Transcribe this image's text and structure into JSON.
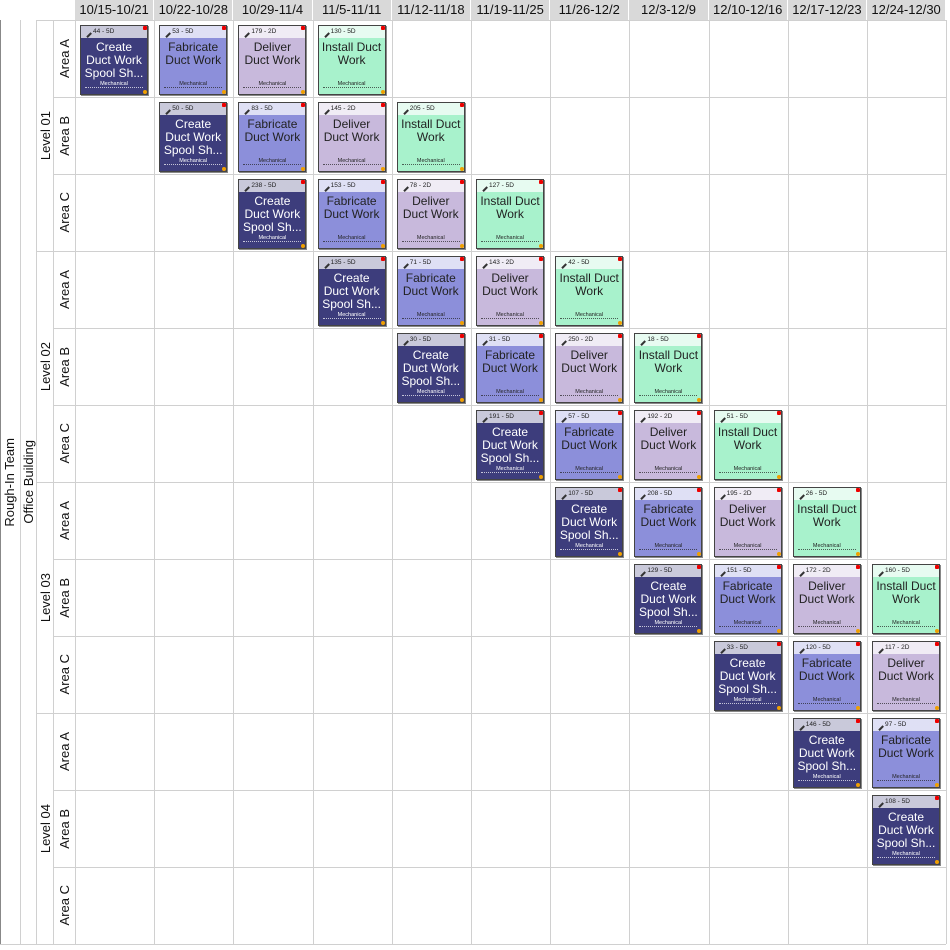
{
  "header": {
    "columns": [
      "10/15-10/21",
      "10/22-10/28",
      "10/29-11/4",
      "11/5-11/11",
      "11/12-11/18",
      "11/19-11/25",
      "11/26-12/2",
      "12/3-12/9",
      "12/10-12/16",
      "12/17-12/23",
      "12/24-12/30"
    ]
  },
  "team": {
    "label": "Rough-In Team",
    "project": "Office Building"
  },
  "levels": [
    {
      "label": "Level 01",
      "areas": [
        {
          "label": "Area A",
          "cells": [
            {
              "tag": "44 - 5D",
              "title": "Create Duct Work Spool Sh...",
              "trade": "Mechanical",
              "color": "#3d3d7c"
            },
            {
              "tag": "53 - 5D",
              "title": "Fabricate Duct Work",
              "trade": "Mechanical",
              "color": "#8c8fda"
            },
            {
              "tag": "179 - 2D",
              "title": "Deliver Duct Work",
              "trade": "Mechanical",
              "color": "#c8b9dc"
            },
            {
              "tag": "130 - 5D",
              "title": "Install Duct Work",
              "trade": "Mechanical",
              "color": "#a8f2cc"
            },
            null,
            null,
            null,
            null,
            null,
            null,
            null
          ]
        },
        {
          "label": "Area B",
          "cells": [
            null,
            {
              "tag": "50 - 5D",
              "title": "Create Duct Work Spool Sh...",
              "trade": "Mechanical",
              "color": "#3d3d7c"
            },
            {
              "tag": "83 - 5D",
              "title": "Fabricate Duct Work",
              "trade": "Mechanical",
              "color": "#8c8fda"
            },
            {
              "tag": "145 - 2D",
              "title": "Deliver Duct Work",
              "trade": "Mechanical",
              "color": "#c8b9dc"
            },
            {
              "tag": "205 - 5D",
              "title": "Install Duct Work",
              "trade": "Mechanical",
              "color": "#a8f2cc"
            },
            null,
            null,
            null,
            null,
            null,
            null
          ]
        },
        {
          "label": "Area C",
          "cells": [
            null,
            null,
            {
              "tag": "238 - 5D",
              "title": "Create Duct Work Spool Sh...",
              "trade": "Mechanical",
              "color": "#3d3d7c"
            },
            {
              "tag": "153 - 5D",
              "title": "Fabricate Duct Work",
              "trade": "Mechanical",
              "color": "#8c8fda"
            },
            {
              "tag": "78 - 2D",
              "title": "Deliver Duct Work",
              "trade": "Mechanical",
              "color": "#c8b9dc"
            },
            {
              "tag": "127 - 5D",
              "title": "Install Duct Work",
              "trade": "Mechanical",
              "color": "#a8f2cc"
            },
            null,
            null,
            null,
            null,
            null
          ]
        }
      ]
    },
    {
      "label": "Level 02",
      "areas": [
        {
          "label": "Area A",
          "cells": [
            null,
            null,
            null,
            {
              "tag": "135 - 5D",
              "title": "Create Duct Work Spool Sh...",
              "trade": "Mechanical",
              "color": "#3d3d7c"
            },
            {
              "tag": "71 - 5D",
              "title": "Fabricate Duct Work",
              "trade": "Mechanical",
              "color": "#8c8fda"
            },
            {
              "tag": "143 - 2D",
              "title": "Deliver Duct Work",
              "trade": "Mechanical",
              "color": "#c8b9dc"
            },
            {
              "tag": "42 - 5D",
              "title": "Install Duct Work",
              "trade": "Mechanical",
              "color": "#a8f2cc"
            },
            null,
            null,
            null,
            null
          ]
        },
        {
          "label": "Area B",
          "cells": [
            null,
            null,
            null,
            null,
            {
              "tag": "30 - 5D",
              "title": "Create Duct Work Spool Sh...",
              "trade": "Mechanical",
              "color": "#3d3d7c"
            },
            {
              "tag": "31 - 5D",
              "title": "Fabricate Duct Work",
              "trade": "Mechanical",
              "color": "#8c8fda"
            },
            {
              "tag": "250 - 2D",
              "title": "Deliver Duct Work",
              "trade": "Mechanical",
              "color": "#c8b9dc"
            },
            {
              "tag": "18 - 5D",
              "title": "Install Duct Work",
              "trade": "Mechanical",
              "color": "#a8f2cc"
            },
            null,
            null,
            null
          ]
        },
        {
          "label": "Area C",
          "cells": [
            null,
            null,
            null,
            null,
            null,
            {
              "tag": "191 - 5D",
              "title": "Create Duct Work Spool Sh...",
              "trade": "Mechanical",
              "color": "#3d3d7c"
            },
            {
              "tag": "57 - 5D",
              "title": "Fabricate Duct Work",
              "trade": "Mechanical",
              "color": "#8c8fda"
            },
            {
              "tag": "192 - 2D",
              "title": "Deliver Duct Work",
              "trade": "Mechanical",
              "color": "#c8b9dc"
            },
            {
              "tag": "51 - 5D",
              "title": "Install Duct Work",
              "trade": "Mechanical",
              "color": "#a8f2cc"
            },
            null,
            null
          ]
        }
      ]
    },
    {
      "label": "Level 03",
      "areas": [
        {
          "label": "Area A",
          "cells": [
            null,
            null,
            null,
            null,
            null,
            null,
            {
              "tag": "107 - 5D",
              "title": "Create Duct Work Spool Sh...",
              "trade": "Mechanical",
              "color": "#3d3d7c"
            },
            {
              "tag": "208 - 5D",
              "title": "Fabricate Duct Work",
              "trade": "Mechanical",
              "color": "#8c8fda"
            },
            {
              "tag": "195 - 2D",
              "title": "Deliver Duct Work",
              "trade": "Mechanical",
              "color": "#c8b9dc"
            },
            {
              "tag": "26 - 5D",
              "title": "Install Duct Work",
              "trade": "Mechanical",
              "color": "#a8f2cc"
            },
            null
          ]
        },
        {
          "label": "Area B",
          "cells": [
            null,
            null,
            null,
            null,
            null,
            null,
            null,
            {
              "tag": "129 - 5D",
              "title": "Create Duct Work Spool Sh...",
              "trade": "Mechanical",
              "color": "#3d3d7c"
            },
            {
              "tag": "151 - 5D",
              "title": "Fabricate Duct Work",
              "trade": "Mechanical",
              "color": "#8c8fda"
            },
            {
              "tag": "172 - 2D",
              "title": "Deliver Duct Work",
              "trade": "Mechanical",
              "color": "#c8b9dc"
            },
            {
              "tag": "160 - 5D",
              "title": "Install Duct Work",
              "trade": "Mechanical",
              "color": "#a8f2cc"
            }
          ]
        },
        {
          "label": "Area C",
          "cells": [
            null,
            null,
            null,
            null,
            null,
            null,
            null,
            null,
            {
              "tag": "33 - 5D",
              "title": "Create Duct Work Spool Sh...",
              "trade": "Mechanical",
              "color": "#3d3d7c"
            },
            {
              "tag": "120 - 5D",
              "title": "Fabricate Duct Work",
              "trade": "Mechanical",
              "color": "#8c8fda"
            },
            {
              "tag": "117 - 2D",
              "title": "Deliver Duct Work",
              "trade": "Mechanical",
              "color": "#c8b9dc"
            }
          ]
        }
      ]
    },
    {
      "label": "Level 04",
      "areas": [
        {
          "label": "Area A",
          "cells": [
            null,
            null,
            null,
            null,
            null,
            null,
            null,
            null,
            null,
            {
              "tag": "146 - 5D",
              "title": "Create Duct Work Spool Sh...",
              "trade": "Mechanical",
              "color": "#3d3d7c"
            },
            {
              "tag": "97 - 5D",
              "title": "Fabricate Duct Work",
              "trade": "Mechanical",
              "color": "#8c8fda"
            }
          ]
        },
        {
          "label": "Area B",
          "cells": [
            null,
            null,
            null,
            null,
            null,
            null,
            null,
            null,
            null,
            null,
            {
              "tag": "108 - 5D",
              "title": "Create Duct Work Spool Sh...",
              "trade": "Mechanical",
              "color": "#3d3d7c"
            }
          ]
        },
        {
          "label": "Area C",
          "cells": [
            null,
            null,
            null,
            null,
            null,
            null,
            null,
            null,
            null,
            null,
            null
          ]
        }
      ]
    }
  ]
}
